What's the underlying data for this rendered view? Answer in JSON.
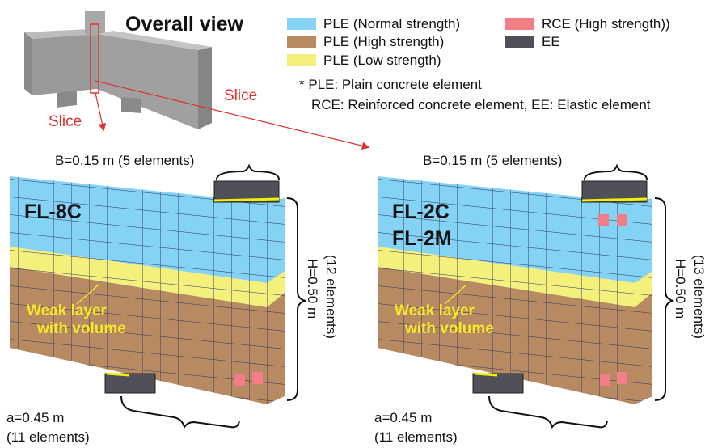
{
  "overall_view": {
    "title": "Overall view",
    "slice_labels": [
      "Slice",
      "Slice"
    ]
  },
  "legend": {
    "items": [
      {
        "label": "PLE (Normal strength)",
        "color": "#84d2f4"
      },
      {
        "label": "PLE (High strength)",
        "color": "#b88a62"
      },
      {
        "label": "PLE (Low strength)",
        "color": "#f4f07c"
      },
      {
        "label": "RCE (High strength))",
        "color": "#f27f85"
      },
      {
        "label": "EE",
        "color": "#505058"
      }
    ],
    "notes": [
      "* PLE: Plain concrete element",
      "RCE: Reinforced concrete element, EE: Elastic element"
    ]
  },
  "panels": [
    {
      "width_label": "B=0.15 m (5 elements)",
      "model_labels": [
        "FL-8C"
      ],
      "weak_layer_label": [
        "Weak layer",
        "with volume"
      ],
      "height_label": "H=0.50 m",
      "height_elements": "(12 elements)",
      "length_label": "a=0.45 m",
      "length_elements": "(11 elements)"
    },
    {
      "width_label": "B=0.15 m (5 elements)",
      "model_labels": [
        "FL-2C",
        "FL-2M"
      ],
      "weak_layer_label": [
        "Weak layer",
        "with volume"
      ],
      "height_label": "H=0.50 m",
      "height_elements": "(13 elements)",
      "length_label": "a=0.45 m",
      "length_elements": "(11 elements)"
    }
  ]
}
